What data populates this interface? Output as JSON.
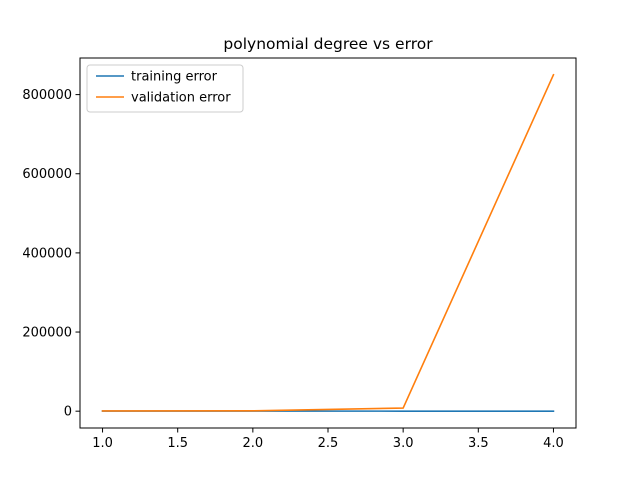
{
  "chart_data": {
    "type": "line",
    "title": "polynomial degree vs error",
    "xlabel": "",
    "ylabel": "",
    "x": [
      1.0,
      2.0,
      3.0,
      4.0
    ],
    "series": [
      {
        "name": "training error",
        "color": "#1f77b4",
        "values": [
          400,
          200,
          100,
          50
        ]
      },
      {
        "name": "validation error",
        "color": "#ff7f0e",
        "values": [
          600,
          1000,
          8000,
          850000
        ]
      }
    ],
    "xlim": [
      0.85,
      4.15
    ],
    "ylim": [
      -42500,
      892500
    ],
    "xticks": [
      1.0,
      1.5,
      2.0,
      2.5,
      3.0,
      3.5,
      4.0
    ],
    "xtick_labels": [
      "1.0",
      "1.5",
      "2.0",
      "2.5",
      "3.0",
      "3.5",
      "4.0"
    ],
    "yticks": [
      0,
      200000,
      400000,
      600000,
      800000
    ],
    "ytick_labels": [
      "0",
      "200000",
      "400000",
      "600000",
      "800000"
    ],
    "grid": false,
    "legend_position": "upper-left"
  }
}
